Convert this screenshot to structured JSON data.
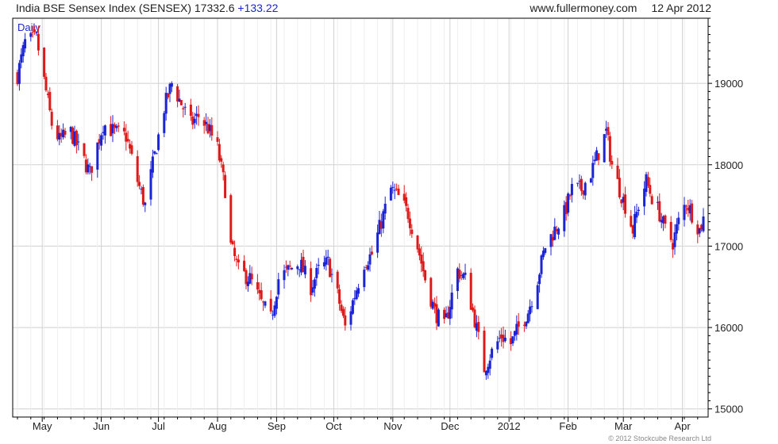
{
  "header": {
    "index_name": "India BSE Sensex Index (SENSEX)",
    "last_value": "17332.6",
    "change": "+133.22",
    "website": "www.fullermoney.com",
    "date": "12 Apr 2012"
  },
  "footer": {
    "copyright": "© 2012 Stockcube Research Ltd"
  },
  "colors": {
    "up": "#1a24d6",
    "down": "#e01818",
    "grid": "#d8d8d8",
    "frame": "#000000"
  },
  "chart_data": {
    "type": "candlestick",
    "period_label": "Daily",
    "y_axis_side": "right",
    "ylim": [
      14900,
      19800
    ],
    "yticks": [
      15000,
      16000,
      17000,
      18000,
      19000
    ],
    "ytick_labels": [
      "15000",
      "16000",
      "17000",
      "18000",
      "19000"
    ],
    "x_date_range": [
      "2011-04-18",
      "2012-04-12"
    ],
    "month_labels": [
      {
        "date": "2011-05-01",
        "label": "May"
      },
      {
        "date": "2011-06-01",
        "label": "Jun"
      },
      {
        "date": "2011-07-01",
        "label": "Jul"
      },
      {
        "date": "2011-08-01",
        "label": "Aug"
      },
      {
        "date": "2011-09-01",
        "label": "Sep"
      },
      {
        "date": "2011-10-01",
        "label": "Oct"
      },
      {
        "date": "2011-11-01",
        "label": "Nov"
      },
      {
        "date": "2011-12-01",
        "label": "Dec"
      },
      {
        "date": "2012-01-01",
        "label": "2012"
      },
      {
        "date": "2012-02-01",
        "label": "Feb"
      },
      {
        "date": "2012-03-01",
        "label": "Mar"
      },
      {
        "date": "2012-04-01",
        "label": "Apr"
      }
    ],
    "close_path": [
      [
        "2011-04-18",
        19100
      ],
      [
        "2011-04-22",
        19500
      ],
      [
        "2011-04-28",
        19550
      ],
      [
        "2011-05-03",
        18900
      ],
      [
        "2011-05-06",
        18500
      ],
      [
        "2011-05-10",
        18300
      ],
      [
        "2011-05-16",
        18400
      ],
      [
        "2011-05-20",
        18200
      ],
      [
        "2011-05-26",
        17900
      ],
      [
        "2011-06-02",
        18500
      ],
      [
        "2011-06-08",
        18400
      ],
      [
        "2011-06-14",
        18350
      ],
      [
        "2011-06-20",
        17800
      ],
      [
        "2011-06-24",
        17500
      ],
      [
        "2011-06-28",
        18000
      ],
      [
        "2011-07-04",
        18700
      ],
      [
        "2011-07-08",
        19000
      ],
      [
        "2011-07-12",
        18800
      ],
      [
        "2011-07-18",
        18500
      ],
      [
        "2011-07-22",
        18600
      ],
      [
        "2011-07-27",
        18450
      ],
      [
        "2011-08-01",
        18200
      ],
      [
        "2011-08-05",
        17700
      ],
      [
        "2011-08-08",
        17000
      ],
      [
        "2011-08-12",
        16700
      ],
      [
        "2011-08-18",
        16600
      ],
      [
        "2011-08-24",
        16300
      ],
      [
        "2011-08-29",
        16100
      ],
      [
        "2011-09-02",
        16600
      ],
      [
        "2011-09-07",
        16700
      ],
      [
        "2011-09-13",
        16800
      ],
      [
        "2011-09-19",
        16500
      ],
      [
        "2011-09-23",
        16700
      ],
      [
        "2011-09-28",
        16800
      ],
      [
        "2011-10-03",
        16400
      ],
      [
        "2011-10-07",
        16000
      ],
      [
        "2011-10-12",
        16400
      ],
      [
        "2011-10-17",
        16800
      ],
      [
        "2011-10-21",
        16900
      ],
      [
        "2011-10-26",
        17300
      ],
      [
        "2011-10-31",
        17700
      ],
      [
        "2011-11-04",
        17600
      ],
      [
        "2011-11-09",
        17400
      ],
      [
        "2011-11-14",
        17000
      ],
      [
        "2011-11-18",
        16600
      ],
      [
        "2011-11-23",
        16200
      ],
      [
        "2011-11-28",
        16000
      ],
      [
        "2011-12-01",
        16300
      ],
      [
        "2011-12-05",
        16700
      ],
      [
        "2011-12-09",
        16600
      ],
      [
        "2011-12-14",
        16100
      ],
      [
        "2011-12-19",
        15500
      ],
      [
        "2011-12-23",
        15700
      ],
      [
        "2011-12-28",
        15900
      ],
      [
        "2012-01-02",
        15800
      ],
      [
        "2012-01-06",
        16000
      ],
      [
        "2012-01-11",
        16200
      ],
      [
        "2012-01-16",
        16600
      ],
      [
        "2012-01-20",
        17000
      ],
      [
        "2012-01-25",
        17200
      ],
      [
        "2012-01-30",
        17400
      ],
      [
        "2012-02-03",
        17700
      ],
      [
        "2012-02-08",
        17700
      ],
      [
        "2012-02-13",
        17900
      ],
      [
        "2012-02-17",
        18150
      ],
      [
        "2012-02-21",
        18400
      ],
      [
        "2012-02-24",
        18000
      ],
      [
        "2012-02-28",
        17700
      ],
      [
        "2012-03-02",
        17500
      ],
      [
        "2012-03-06",
        17200
      ],
      [
        "2012-03-09",
        17500
      ],
      [
        "2012-03-13",
        17800
      ],
      [
        "2012-03-16",
        17600
      ],
      [
        "2012-03-20",
        17400
      ],
      [
        "2012-03-23",
        17200
      ],
      [
        "2012-03-27",
        17050
      ],
      [
        "2012-03-30",
        17300
      ],
      [
        "2012-04-03",
        17550
      ],
      [
        "2012-04-06",
        17400
      ],
      [
        "2012-04-10",
        17200
      ],
      [
        "2012-04-12",
        17332.6
      ]
    ]
  }
}
